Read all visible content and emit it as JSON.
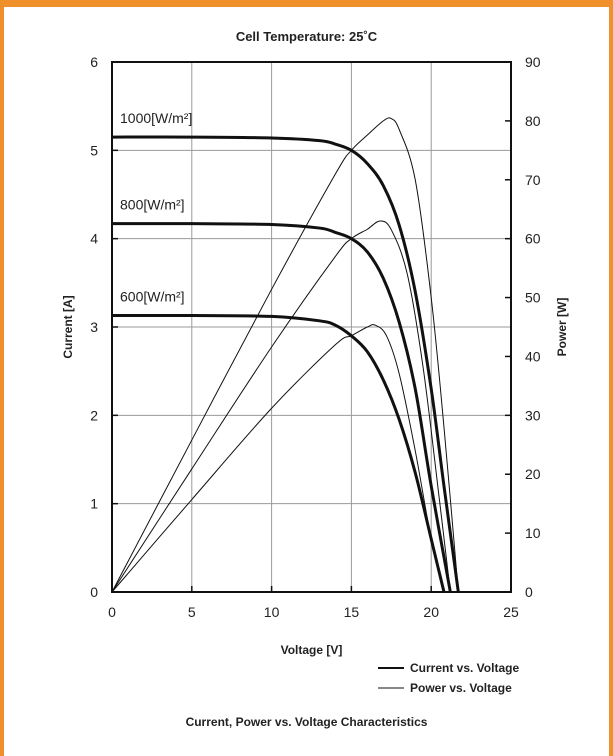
{
  "chart_data": {
    "type": "line",
    "title": "Cell Temperature:  25˚C",
    "caption": "Current, Power vs. Voltage Characteristics",
    "xlabel": "Voltage [V]",
    "ylabel_left": "Current [A]",
    "ylabel_right": "Power [W]",
    "xlim": [
      0,
      25
    ],
    "ylim_left": [
      0,
      6
    ],
    "ylim_right": [
      0,
      90
    ],
    "x_ticks": [
      "0",
      "5",
      "10",
      "15",
      "20",
      "25"
    ],
    "y_left_ticks": [
      "0",
      "1",
      "2",
      "3",
      "4",
      "5",
      "6"
    ],
    "y_right_ticks": [
      "0",
      "10",
      "20",
      "30",
      "40",
      "50",
      "60",
      "70",
      "80",
      "90"
    ],
    "grid": true,
    "legend": [
      {
        "label": "Current vs. Voltage",
        "style": "thick"
      },
      {
        "label": "Power vs. Voltage",
        "style": "thin"
      }
    ],
    "series": [
      {
        "name": "1000[W/m²]",
        "current": [
          [
            0,
            5.15
          ],
          [
            5,
            5.15
          ],
          [
            10,
            5.14
          ],
          [
            13,
            5.11
          ],
          [
            14,
            5.07
          ],
          [
            15,
            5.0
          ],
          [
            16,
            4.85
          ],
          [
            17,
            4.6
          ],
          [
            18,
            4.15
          ],
          [
            19,
            3.4
          ],
          [
            20,
            2.3
          ],
          [
            20.8,
            1.2
          ],
          [
            21.7,
            0
          ]
        ],
        "power": [
          [
            0,
            0
          ],
          [
            5,
            25.8
          ],
          [
            10,
            51.4
          ],
          [
            14,
            71.0
          ],
          [
            15,
            75.0
          ],
          [
            16,
            77.6
          ],
          [
            17,
            80.0
          ],
          [
            17.5,
            80.4
          ],
          [
            18,
            78.5
          ],
          [
            19,
            70.0
          ],
          [
            20,
            50.0
          ],
          [
            20.8,
            28.0
          ],
          [
            21.7,
            0
          ]
        ]
      },
      {
        "name": "800[W/m²]",
        "current": [
          [
            0,
            4.17
          ],
          [
            5,
            4.17
          ],
          [
            10,
            4.16
          ],
          [
            13,
            4.12
          ],
          [
            14,
            4.07
          ],
          [
            15,
            4.0
          ],
          [
            16,
            3.85
          ],
          [
            17,
            3.55
          ],
          [
            18,
            3.05
          ],
          [
            19,
            2.3
          ],
          [
            20,
            1.2
          ],
          [
            21.2,
            0
          ]
        ],
        "power": [
          [
            0,
            0
          ],
          [
            5,
            20.9
          ],
          [
            10,
            41.6
          ],
          [
            14,
            57.0
          ],
          [
            15,
            60.0
          ],
          [
            16,
            61.6
          ],
          [
            16.8,
            63.0
          ],
          [
            17.5,
            61.5
          ],
          [
            18.5,
            54.0
          ],
          [
            19.5,
            38.0
          ],
          [
            20.5,
            16.0
          ],
          [
            21.2,
            0
          ]
        ]
      },
      {
        "name": "600[W/m²]",
        "current": [
          [
            0,
            3.13
          ],
          [
            5,
            3.13
          ],
          [
            10,
            3.12
          ],
          [
            13,
            3.07
          ],
          [
            14,
            3.02
          ],
          [
            15,
            2.9
          ],
          [
            16,
            2.72
          ],
          [
            17,
            2.4
          ],
          [
            18,
            1.95
          ],
          [
            19,
            1.35
          ],
          [
            20,
            0.6
          ],
          [
            20.8,
            0
          ]
        ],
        "power": [
          [
            0,
            0
          ],
          [
            5,
            15.7
          ],
          [
            10,
            31.2
          ],
          [
            14,
            42.0
          ],
          [
            15,
            43.5
          ],
          [
            16,
            45.0
          ],
          [
            16.5,
            45.3
          ],
          [
            17.2,
            43.5
          ],
          [
            18,
            37.0
          ],
          [
            19,
            24.0
          ],
          [
            20,
            9.0
          ],
          [
            20.8,
            0
          ]
        ]
      }
    ]
  }
}
